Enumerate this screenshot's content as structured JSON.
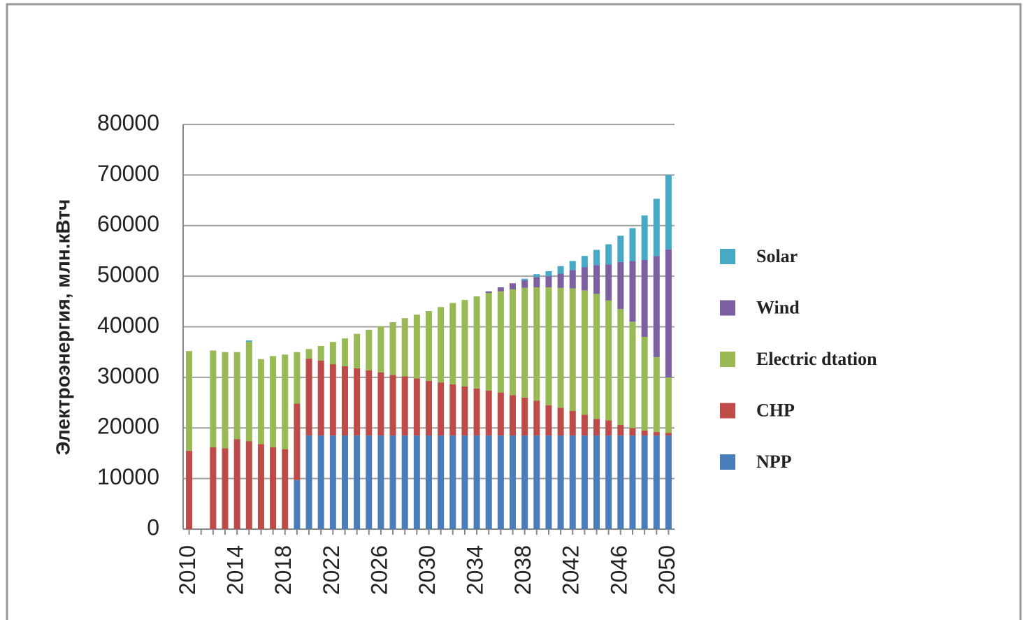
{
  "chart_data": {
    "type": "stacked-bar",
    "y_label": "Электроэнергия, млн.кВтч",
    "categories": [
      "2010",
      null,
      null,
      null,
      "2014",
      null,
      null,
      null,
      "2018",
      null,
      null,
      null,
      "2022",
      null,
      null,
      null,
      "2026",
      null,
      null,
      null,
      "2030",
      null,
      null,
      null,
      "2034",
      null,
      null,
      null,
      "2038",
      null,
      null,
      null,
      "2042",
      null,
      null,
      null,
      "2046",
      null,
      null,
      null,
      "2050"
    ],
    "series": [
      {
        "name": "NPP",
        "color": "#4a7ebb",
        "values": [
          0,
          0,
          0,
          0,
          0,
          0,
          0,
          0,
          0,
          9700,
          18500,
          18500,
          18500,
          18500,
          18500,
          18500,
          18500,
          18500,
          18500,
          18500,
          18500,
          18500,
          18500,
          18500,
          18500,
          18500,
          18500,
          18500,
          18500,
          18500,
          18500,
          18500,
          18500,
          18500,
          18500,
          18500,
          18500,
          18500,
          18500,
          18500,
          18500
        ]
      },
      {
        "name": "CHP",
        "color": "#be4b48",
        "values": [
          15500,
          0,
          16200,
          16000,
          17800,
          17400,
          16800,
          16200,
          15800,
          15100,
          15200,
          14800,
          14100,
          13700,
          13300,
          12900,
          12500,
          12000,
          11700,
          11300,
          10800,
          10500,
          10100,
          9700,
          9300,
          8900,
          8500,
          8000,
          7500,
          6900,
          6000,
          5500,
          4900,
          4100,
          3300,
          3000,
          2100,
          1500,
          1000,
          700,
          500
        ]
      },
      {
        "name": "Electric dtation",
        "color": "#98b954",
        "values": [
          19700,
          0,
          19100,
          19000,
          17200,
          19600,
          16800,
          18000,
          18700,
          10200,
          1900,
          2900,
          4400,
          5500,
          6800,
          8000,
          9100,
          10400,
          11500,
          12600,
          13800,
          14900,
          16100,
          17100,
          18200,
          19300,
          20000,
          20900,
          21700,
          22400,
          23300,
          23700,
          24200,
          24600,
          24700,
          23700,
          22900,
          21000,
          18500,
          14800,
          11000
        ]
      },
      {
        "name": "Wind",
        "color": "#7d60a0",
        "values": [
          0,
          0,
          0,
          0,
          0,
          0,
          0,
          0,
          0,
          0,
          0,
          0,
          0,
          0,
          0,
          0,
          0,
          0,
          0,
          0,
          0,
          0,
          0,
          0,
          0,
          300,
          800,
          1200,
          1500,
          2000,
          2200,
          2800,
          3600,
          4600,
          5700,
          7100,
          9300,
          12000,
          15200,
          20000,
          25300
        ]
      },
      {
        "name": "Solar",
        "color": "#46aac5",
        "values": [
          0,
          0,
          0,
          0,
          0,
          300,
          0,
          0,
          0,
          0,
          0,
          0,
          0,
          0,
          0,
          0,
          0,
          0,
          0,
          0,
          0,
          0,
          0,
          0,
          0,
          0,
          0,
          0,
          300,
          600,
          1000,
          1500,
          1800,
          2200,
          3000,
          4000,
          5200,
          6500,
          8800,
          11300,
          14700
        ]
      }
    ],
    "ylim": [
      0,
      80000
    ],
    "yticks": [
      0,
      10000,
      20000,
      30000,
      40000,
      50000,
      60000,
      70000,
      80000
    ],
    "grid": true
  }
}
